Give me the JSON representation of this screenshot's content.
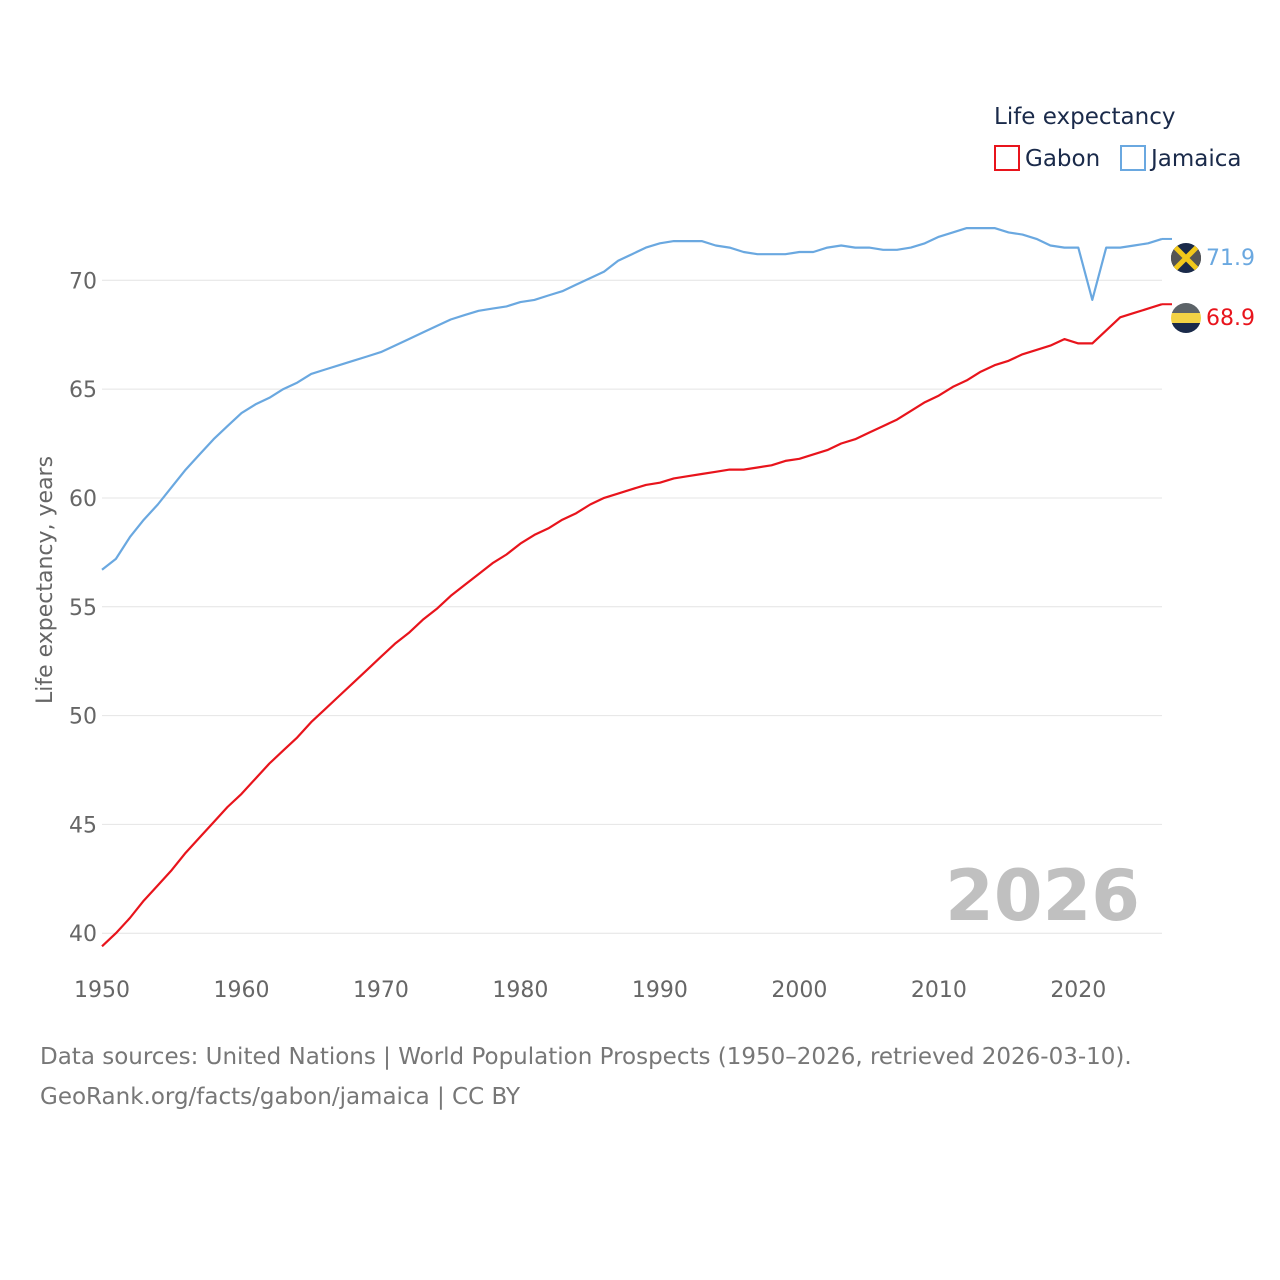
{
  "chart_data": {
    "type": "line",
    "ylabel": "Life expectancy, years",
    "xlim": [
      1950,
      2026
    ],
    "ylim": [
      39,
      73
    ],
    "xticks": [
      "1950",
      "1960",
      "1970",
      "1980",
      "1990",
      "2000",
      "2010",
      "2020"
    ],
    "yticks": [
      "40",
      "45",
      "50",
      "55",
      "60",
      "65",
      "70"
    ],
    "legend": {
      "title": "Life expectancy",
      "position": "top-right"
    },
    "year_stamp": "2026",
    "x": [
      1950,
      1951,
      1952,
      1953,
      1954,
      1955,
      1956,
      1957,
      1958,
      1959,
      1960,
      1961,
      1962,
      1963,
      1964,
      1965,
      1966,
      1967,
      1968,
      1969,
      1970,
      1971,
      1972,
      1973,
      1974,
      1975,
      1976,
      1977,
      1978,
      1979,
      1980,
      1981,
      1982,
      1983,
      1984,
      1985,
      1986,
      1987,
      1988,
      1989,
      1990,
      1991,
      1992,
      1993,
      1994,
      1995,
      1996,
      1997,
      1998,
      1999,
      2000,
      2001,
      2002,
      2003,
      2004,
      2005,
      2006,
      2007,
      2008,
      2009,
      2010,
      2011,
      2012,
      2013,
      2014,
      2015,
      2016,
      2017,
      2018,
      2019,
      2020,
      2021,
      2022,
      2023,
      2024,
      2025,
      2026
    ],
    "series": [
      {
        "name": "Gabon",
        "color": "#e8141c",
        "end_label": "68.9",
        "values": [
          39.4,
          40.0,
          40.7,
          41.5,
          42.2,
          42.9,
          43.7,
          44.4,
          45.1,
          45.8,
          46.4,
          47.1,
          47.8,
          48.4,
          49.0,
          49.7,
          50.3,
          50.9,
          51.5,
          52.1,
          52.7,
          53.3,
          53.8,
          54.4,
          54.9,
          55.5,
          56.0,
          56.5,
          57.0,
          57.4,
          57.9,
          58.3,
          58.6,
          59.0,
          59.3,
          59.7,
          60.0,
          60.2,
          60.4,
          60.6,
          60.7,
          60.9,
          61.0,
          61.1,
          61.2,
          61.3,
          61.3,
          61.4,
          61.5,
          61.7,
          61.8,
          62.0,
          62.2,
          62.5,
          62.7,
          63.0,
          63.3,
          63.6,
          64.0,
          64.4,
          64.7,
          65.1,
          65.4,
          65.8,
          66.1,
          66.3,
          66.6,
          66.8,
          67.0,
          67.3,
          67.1,
          67.1,
          67.7,
          68.3,
          68.5,
          68.7,
          68.9
        ]
      },
      {
        "name": "Jamaica",
        "color": "#6aa8e0",
        "end_label": "71.9",
        "values": [
          56.7,
          57.2,
          58.2,
          59.0,
          59.7,
          60.5,
          61.3,
          62.0,
          62.7,
          63.3,
          63.9,
          64.3,
          64.6,
          65.0,
          65.3,
          65.7,
          65.9,
          66.1,
          66.3,
          66.5,
          66.7,
          67.0,
          67.3,
          67.6,
          67.9,
          68.2,
          68.4,
          68.6,
          68.7,
          68.8,
          69.0,
          69.1,
          69.3,
          69.5,
          69.8,
          70.1,
          70.4,
          70.9,
          71.2,
          71.5,
          71.7,
          71.8,
          71.8,
          71.8,
          71.6,
          71.5,
          71.3,
          71.2,
          71.2,
          71.2,
          71.3,
          71.3,
          71.5,
          71.6,
          71.5,
          71.5,
          71.4,
          71.4,
          71.5,
          71.7,
          72.0,
          72.2,
          72.4,
          72.4,
          72.4,
          72.2,
          72.1,
          71.9,
          71.6,
          71.5,
          71.5,
          69.1,
          71.5,
          71.5,
          71.6,
          71.7,
          71.9
        ]
      }
    ]
  },
  "footer": {
    "line1": "Data sources: United Nations | World Population Prospects (1950–2026, retrieved 2026-03-10).",
    "line2": "GeoRank.org/facts/gabon/jamaica | CC BY"
  }
}
